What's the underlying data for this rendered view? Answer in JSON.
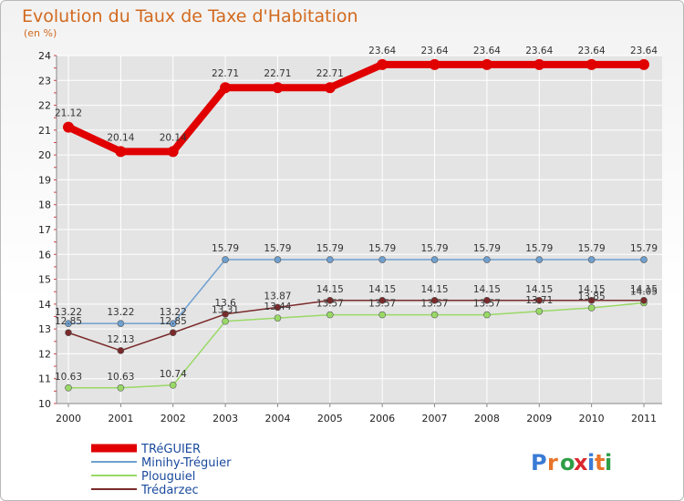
{
  "chart_data": {
    "type": "line",
    "title": "Evolution du Taux de Taxe d'Habitation",
    "unit_label": "(en %)",
    "xlabel": "",
    "ylabel": "(en %)",
    "ylim": [
      10,
      24
    ],
    "y_ticks": [
      10,
      11,
      12,
      13,
      14,
      15,
      16,
      17,
      18,
      19,
      20,
      21,
      22,
      23,
      24
    ],
    "grid": true,
    "legend_position": "bottom-left",
    "categories": [
      "2000",
      "2001",
      "2002",
      "2003",
      "2004",
      "2005",
      "2006",
      "2007",
      "2008",
      "2009",
      "2010",
      "2011"
    ],
    "series": [
      {
        "name": "TRéGUIER",
        "color": "#e00000",
        "values": [
          21.12,
          20.14,
          20.14,
          22.71,
          22.71,
          22.71,
          23.64,
          23.64,
          23.64,
          23.64,
          23.64,
          23.64
        ],
        "labels": [
          "21.12",
          "20.14",
          "20.14",
          "22.71",
          "22.71",
          "22.71",
          "23.64",
          "23.64",
          "23.64",
          "23.64",
          "23.64",
          "23.64"
        ]
      },
      {
        "name": "Minihy-Tréguier",
        "color": "#6fa0d0",
        "values": [
          13.22,
          13.22,
          13.22,
          15.79,
          15.79,
          15.79,
          15.79,
          15.79,
          15.79,
          15.79,
          15.79,
          15.79
        ],
        "labels": [
          "13.22",
          "13.22",
          "13.22",
          "15.79",
          "15.79",
          "15.79",
          "15.79",
          "15.79",
          "15.79",
          "15.79",
          "15.79",
          "15.79"
        ]
      },
      {
        "name": "Plouguiel",
        "color": "#99d966",
        "values": [
          10.63,
          10.63,
          10.74,
          13.31,
          13.44,
          13.57,
          13.57,
          13.57,
          13.57,
          13.71,
          13.85,
          14.05
        ],
        "labels": [
          "10.63",
          "10.63",
          "10.74",
          "13.31",
          "13.44",
          "13.57",
          "13.57",
          "13.57",
          "13.57",
          "13.71",
          "13.85",
          "14.05"
        ]
      },
      {
        "name": "Trédarzec",
        "color": "#7a2a2a",
        "values": [
          12.85,
          12.13,
          12.85,
          13.6,
          13.87,
          14.15,
          14.15,
          14.15,
          14.15,
          14.15,
          14.15,
          14.15
        ],
        "labels": [
          "12.85",
          "12.13",
          "12.85",
          "13.6",
          "13.87",
          "14.15",
          "14.15",
          "14.15",
          "14.15",
          "14.15",
          "14.15",
          "14.15"
        ]
      }
    ]
  },
  "logo": {
    "text": "Proxiti",
    "letter_colors": [
      "#3a7bd5",
      "#e8742a",
      "#2e9e47",
      "#d9282f",
      "#3a7bd5",
      "#e8742a",
      "#2e9e47"
    ]
  }
}
